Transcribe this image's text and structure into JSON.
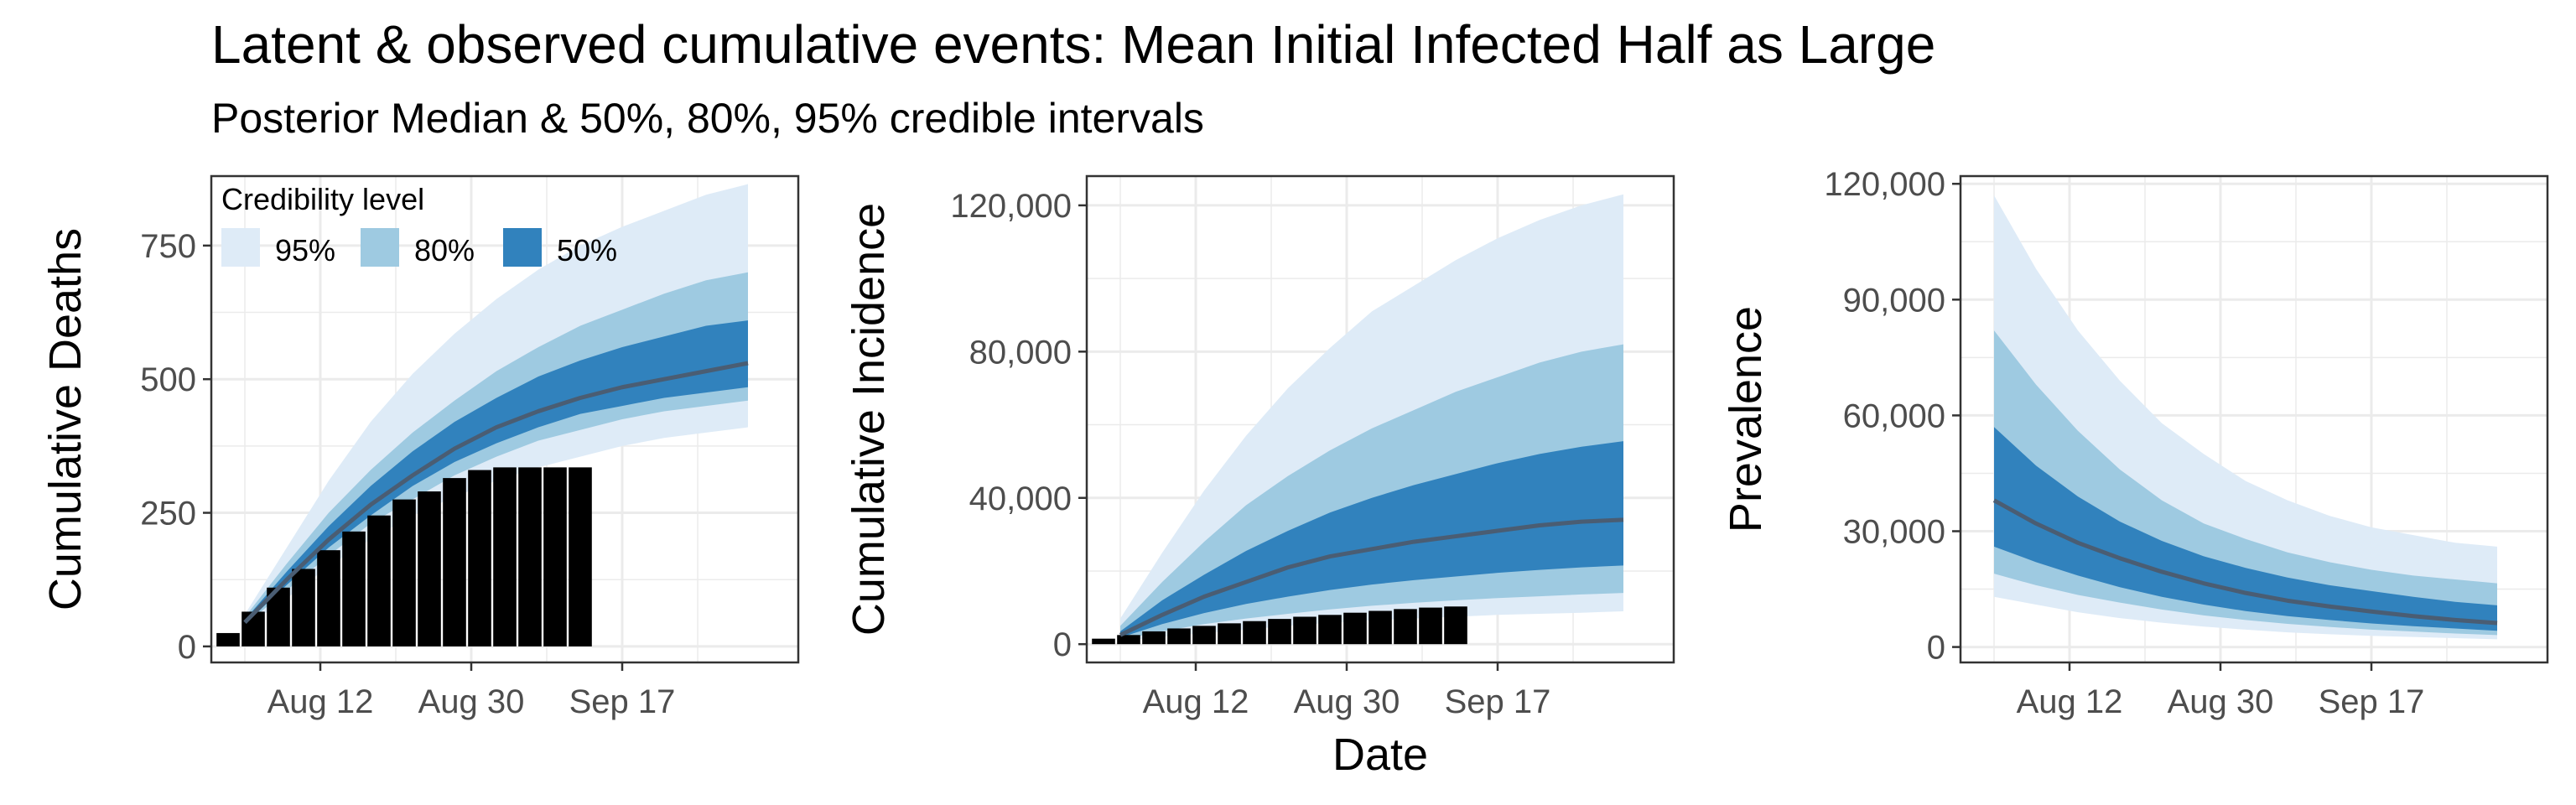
{
  "title": "Latent & observed cumulative events: Mean Initial Infected Half as Large",
  "subtitle": "Posterior Median & 50%, 80%, 95% credible intervals",
  "x_axis_label": "Date",
  "legend": {
    "title": "Credibility level",
    "items": [
      {
        "label": "95%",
        "color": "#deebf7"
      },
      {
        "label": "80%",
        "color": "#9ecae1"
      },
      {
        "label": "50%",
        "color": "#3182bd"
      }
    ]
  },
  "colors": {
    "band_95": "#deebf7",
    "band_80": "#9ecae1",
    "band_50": "#3182bd",
    "median": "#4a5d73",
    "observed_bars": "#000000",
    "grid": "#ebebeb",
    "panel_border": "#333333"
  },
  "chart_data": [
    {
      "type": "area",
      "panel": "deaths",
      "ylabel": "Cumulative Deaths",
      "ylim": [
        -30,
        880
      ],
      "yticks": [
        0,
        250,
        500,
        750
      ],
      "ytick_labels": [
        "0",
        "250",
        "500",
        "750"
      ],
      "xlim": [
        "2020-07-30",
        "2020-10-08"
      ],
      "xticks": [
        "2020-08-12",
        "2020-08-30",
        "2020-09-17"
      ],
      "xtick_labels": [
        "Aug 12",
        "Aug 30",
        "Sep 17"
      ],
      "legend_position": "top-left",
      "x": [
        "2020-08-03",
        "2020-08-08",
        "2020-08-13",
        "2020-08-18",
        "2020-08-23",
        "2020-08-28",
        "2020-09-02",
        "2020-09-07",
        "2020-09-12",
        "2020-09-17",
        "2020-09-22",
        "2020-09-27",
        "2020-10-02"
      ],
      "median": [
        45,
        125,
        200,
        265,
        320,
        370,
        410,
        440,
        465,
        485,
        500,
        515,
        530
      ],
      "bands": [
        {
          "level": "95%",
          "lower": [
            35,
            90,
            150,
            200,
            245,
            280,
            310,
            335,
            355,
            375,
            390,
            400,
            410
          ],
          "upper": [
            60,
            185,
            310,
            420,
            510,
            585,
            650,
            705,
            750,
            785,
            815,
            845,
            865
          ]
        },
        {
          "level": "80%",
          "lower": [
            40,
            105,
            170,
            230,
            275,
            320,
            355,
            385,
            405,
            425,
            440,
            450,
            460
          ],
          "upper": [
            55,
            155,
            250,
            330,
            400,
            460,
            515,
            560,
            600,
            630,
            660,
            685,
            700
          ]
        },
        {
          "level": "50%",
          "lower": [
            42,
            115,
            185,
            245,
            300,
            345,
            380,
            410,
            435,
            450,
            465,
            475,
            485
          ],
          "upper": [
            50,
            140,
            225,
            300,
            365,
            420,
            465,
            505,
            535,
            560,
            580,
            600,
            610
          ]
        }
      ],
      "observed": {
        "x": [
          "2020-08-01",
          "2020-08-04",
          "2020-08-07",
          "2020-08-10",
          "2020-08-13",
          "2020-08-16",
          "2020-08-19",
          "2020-08-22",
          "2020-08-25",
          "2020-08-28",
          "2020-08-31",
          "2020-09-03",
          "2020-09-06",
          "2020-09-09",
          "2020-09-12"
        ],
        "values": [
          25,
          65,
          110,
          145,
          180,
          215,
          245,
          275,
          290,
          315,
          330,
          335,
          335,
          335,
          335
        ]
      }
    },
    {
      "type": "area",
      "panel": "incidence",
      "ylabel": "Cumulative Incidence",
      "ylim": [
        -5000,
        128000
      ],
      "yticks": [
        0,
        40000,
        80000,
        120000
      ],
      "ytick_labels": [
        "0",
        "40,000",
        "80,000",
        "120,000"
      ],
      "xlim": [
        "2020-07-30",
        "2020-10-08"
      ],
      "xticks": [
        "2020-08-12",
        "2020-08-30",
        "2020-09-17"
      ],
      "xtick_labels": [
        "Aug 12",
        "Aug 30",
        "Sep 17"
      ],
      "x": [
        "2020-08-03",
        "2020-08-08",
        "2020-08-13",
        "2020-08-18",
        "2020-08-23",
        "2020-08-28",
        "2020-09-02",
        "2020-09-07",
        "2020-09-12",
        "2020-09-17",
        "2020-09-22",
        "2020-09-27",
        "2020-10-02"
      ],
      "median": [
        2500,
        8000,
        13000,
        17000,
        21000,
        24000,
        26000,
        28000,
        29500,
        31000,
        32500,
        33500,
        34000
      ],
      "bands": [
        {
          "level": "95%",
          "lower": [
            800,
            2000,
            3000,
            4000,
            5000,
            5800,
            6500,
            7000,
            7500,
            8000,
            8300,
            8600,
            9000
          ],
          "upper": [
            7000,
            25000,
            42000,
            57000,
            70000,
            81000,
            91000,
            98000,
            105000,
            111000,
            116000,
            120000,
            123000
          ]
        },
        {
          "level": "80%",
          "lower": [
            1200,
            3500,
            5500,
            7000,
            8300,
            9500,
            10500,
            11300,
            12000,
            12600,
            13100,
            13600,
            14000
          ],
          "upper": [
            5000,
            17000,
            28000,
            38000,
            46000,
            53000,
            59000,
            64000,
            69000,
            73000,
            77000,
            80000,
            82000
          ]
        },
        {
          "level": "50%",
          "lower": [
            1800,
            5500,
            8500,
            11000,
            13000,
            14800,
            16300,
            17500,
            18500,
            19500,
            20300,
            21000,
            21500
          ],
          "upper": [
            3500,
            12000,
            19000,
            25500,
            31000,
            36000,
            40000,
            43500,
            46500,
            49500,
            52000,
            54000,
            55500
          ]
        }
      ],
      "observed": {
        "x": [
          "2020-08-01",
          "2020-08-04",
          "2020-08-07",
          "2020-08-10",
          "2020-08-13",
          "2020-08-16",
          "2020-08-19",
          "2020-08-22",
          "2020-08-25",
          "2020-08-28",
          "2020-08-31",
          "2020-09-03",
          "2020-09-06",
          "2020-09-09",
          "2020-09-12"
        ],
        "values": [
          1500,
          2500,
          3500,
          4300,
          5000,
          5700,
          6300,
          6900,
          7500,
          8000,
          8600,
          9100,
          9600,
          10000,
          10300
        ]
      }
    },
    {
      "type": "area",
      "panel": "prevalence",
      "ylabel": "Prevalence",
      "ylim": [
        -4000,
        122000
      ],
      "yticks": [
        0,
        30000,
        60000,
        90000,
        120000
      ],
      "ytick_labels": [
        "0",
        "30,000",
        "60,000",
        "90,000",
        "120,000"
      ],
      "xlim": [
        "2020-07-30",
        "2020-10-08"
      ],
      "xticks": [
        "2020-08-12",
        "2020-08-30",
        "2020-09-17"
      ],
      "xtick_labels": [
        "Aug 12",
        "Aug 30",
        "Sep 17"
      ],
      "x": [
        "2020-08-03",
        "2020-08-08",
        "2020-08-13",
        "2020-08-18",
        "2020-08-23",
        "2020-08-28",
        "2020-09-02",
        "2020-09-07",
        "2020-09-12",
        "2020-09-17",
        "2020-09-22",
        "2020-09-27",
        "2020-10-02"
      ],
      "median": [
        38000,
        32000,
        27000,
        23000,
        19500,
        16500,
        14000,
        12000,
        10500,
        9200,
        8000,
        7000,
        6200
      ],
      "bands": [
        {
          "level": "95%",
          "lower": [
            13000,
            11000,
            9000,
            7500,
            6300,
            5300,
            4500,
            3800,
            3300,
            2900,
            2600,
            2300,
            2000
          ],
          "upper": [
            117000,
            98000,
            82000,
            69000,
            58000,
            50000,
            43000,
            38000,
            34000,
            31000,
            29000,
            27000,
            26000
          ]
        },
        {
          "level": "80%",
          "lower": [
            19000,
            16000,
            13500,
            11500,
            9700,
            8200,
            7000,
            6000,
            5200,
            4500,
            4000,
            3500,
            3100
          ],
          "upper": [
            82000,
            68000,
            56000,
            46000,
            38000,
            32000,
            28000,
            24500,
            22000,
            20000,
            18500,
            17500,
            16500
          ]
        },
        {
          "level": "50%",
          "lower": [
            26000,
            22000,
            18500,
            15500,
            13000,
            11000,
            9300,
            8000,
            7000,
            6100,
            5400,
            4800,
            4200
          ],
          "upper": [
            57000,
            47000,
            39000,
            32500,
            27500,
            23500,
            20500,
            18000,
            16000,
            14500,
            13000,
            11700,
            10800
          ]
        }
      ]
    }
  ]
}
